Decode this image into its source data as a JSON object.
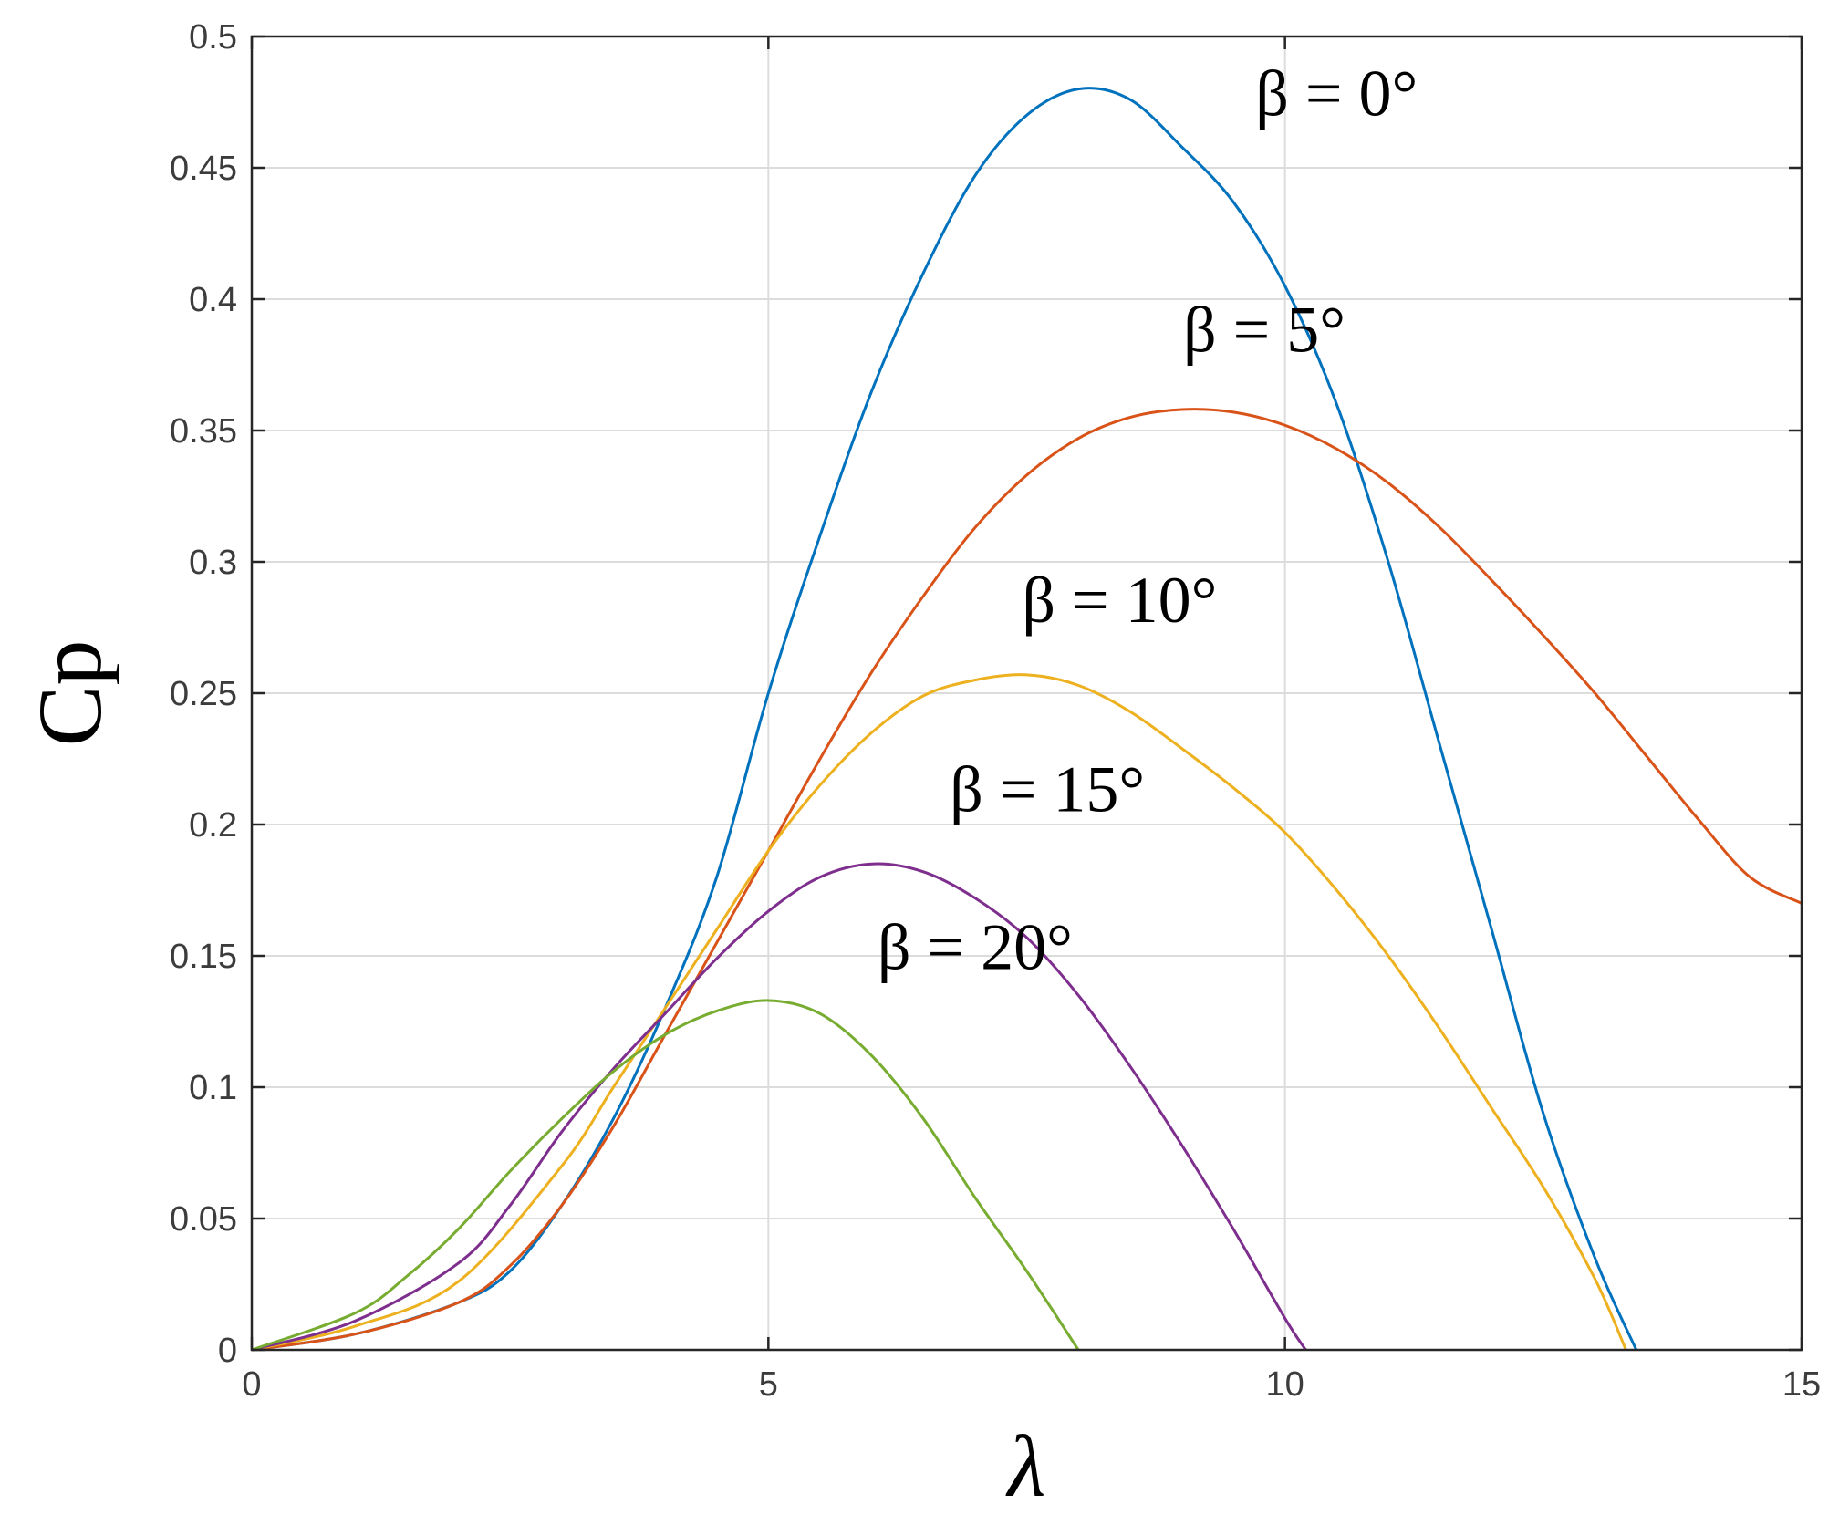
{
  "chart_data": {
    "type": "line",
    "title": "",
    "xlabel": "λ",
    "ylabel": "Cp",
    "xlim": [
      0,
      15
    ],
    "ylim": [
      0,
      0.5
    ],
    "xticks": [
      0,
      5,
      10,
      15
    ],
    "xtick_labels": [
      "0",
      "5",
      "10",
      "15"
    ],
    "yticks": [
      0,
      0.05,
      0.1,
      0.15,
      0.2,
      0.25,
      0.3,
      0.35,
      0.4,
      0.45,
      0.5
    ],
    "ytick_labels": [
      "0",
      "0.05",
      "0.1",
      "0.15",
      "0.2",
      "0.25",
      "0.3",
      "0.35",
      "0.4",
      "0.45",
      "0.5"
    ],
    "grid": true,
    "legend": "none",
    "series": [
      {
        "name": "β = 0°",
        "color": "#0072BD",
        "x": [
          0,
          1,
          2,
          2.5,
          3,
          3.5,
          4,
          4.5,
          5,
          5.5,
          6,
          6.5,
          7,
          7.5,
          8,
          8.5,
          9,
          9.5,
          10,
          10.5,
          11,
          11.5,
          12,
          12.5,
          13,
          13.4
        ],
        "y": [
          0,
          0.006,
          0.018,
          0.03,
          0.055,
          0.088,
          0.13,
          0.18,
          0.25,
          0.31,
          0.365,
          0.41,
          0.447,
          0.47,
          0.48,
          0.476,
          0.458,
          0.437,
          0.405,
          0.36,
          0.3,
          0.23,
          0.16,
          0.09,
          0.035,
          0
        ]
      },
      {
        "name": "β = 5°",
        "color": "#D95319",
        "x": [
          0,
          1,
          2,
          2.5,
          3,
          3.5,
          4,
          4.5,
          5,
          5.5,
          6,
          6.5,
          7,
          7.5,
          8,
          8.5,
          9,
          9.5,
          10,
          10.5,
          11,
          11.5,
          12,
          12.5,
          13,
          13.5,
          14,
          14.5,
          15
        ],
        "y": [
          0,
          0.006,
          0.018,
          0.032,
          0.055,
          0.085,
          0.12,
          0.155,
          0.19,
          0.225,
          0.258,
          0.287,
          0.313,
          0.333,
          0.347,
          0.355,
          0.358,
          0.357,
          0.352,
          0.343,
          0.33,
          0.313,
          0.293,
          0.272,
          0.25,
          0.226,
          0.202,
          0.18,
          0.17
        ]
      },
      {
        "name": "β = 10°",
        "color": "#EDB120",
        "x": [
          0,
          1,
          2,
          3,
          3.5,
          4,
          4.5,
          5,
          5.5,
          6,
          6.5,
          7,
          7.5,
          8,
          8.5,
          9,
          9.5,
          10,
          10.5,
          11,
          11.5,
          12,
          12.5,
          13,
          13.3
        ],
        "y": [
          0,
          0.009,
          0.026,
          0.07,
          0.1,
          0.13,
          0.16,
          0.19,
          0.215,
          0.235,
          0.249,
          0.255,
          0.257,
          0.253,
          0.243,
          0.229,
          0.214,
          0.197,
          0.175,
          0.15,
          0.122,
          0.092,
          0.062,
          0.027,
          0
        ]
      },
      {
        "name": "β = 15°",
        "color": "#7E2F8E",
        "x": [
          0,
          1,
          2,
          2.5,
          3,
          3.5,
          4,
          4.5,
          5,
          5.5,
          6,
          6.5,
          7,
          7.5,
          8,
          8.5,
          9,
          9.5,
          10,
          10.2
        ],
        "y": [
          0,
          0.011,
          0.033,
          0.055,
          0.083,
          0.107,
          0.128,
          0.149,
          0.167,
          0.18,
          0.185,
          0.182,
          0.172,
          0.157,
          0.135,
          0.108,
          0.078,
          0.046,
          0.012,
          0
        ]
      },
      {
        "name": "β = 20°",
        "color": "#77AC30",
        "x": [
          0,
          1,
          1.5,
          2,
          2.5,
          3,
          3.5,
          4,
          4.5,
          5,
          5.5,
          6,
          6.5,
          7,
          7.5,
          8
        ],
        "y": [
          0,
          0.014,
          0.028,
          0.046,
          0.068,
          0.088,
          0.106,
          0.12,
          0.129,
          0.133,
          0.128,
          0.112,
          0.088,
          0.058,
          0.03,
          0
        ]
      }
    ],
    "annotations": [
      {
        "text": "β = 0°",
        "x": 10.5,
        "y": 0.47
      },
      {
        "text": "β = 5°",
        "x": 9.8,
        "y": 0.38
      },
      {
        "text": "β = 10°",
        "x": 8.4,
        "y": 0.277
      },
      {
        "text": "β = 15°",
        "x": 7.7,
        "y": 0.205
      },
      {
        "text": "β = 20°",
        "x": 7.0,
        "y": 0.145
      }
    ]
  }
}
